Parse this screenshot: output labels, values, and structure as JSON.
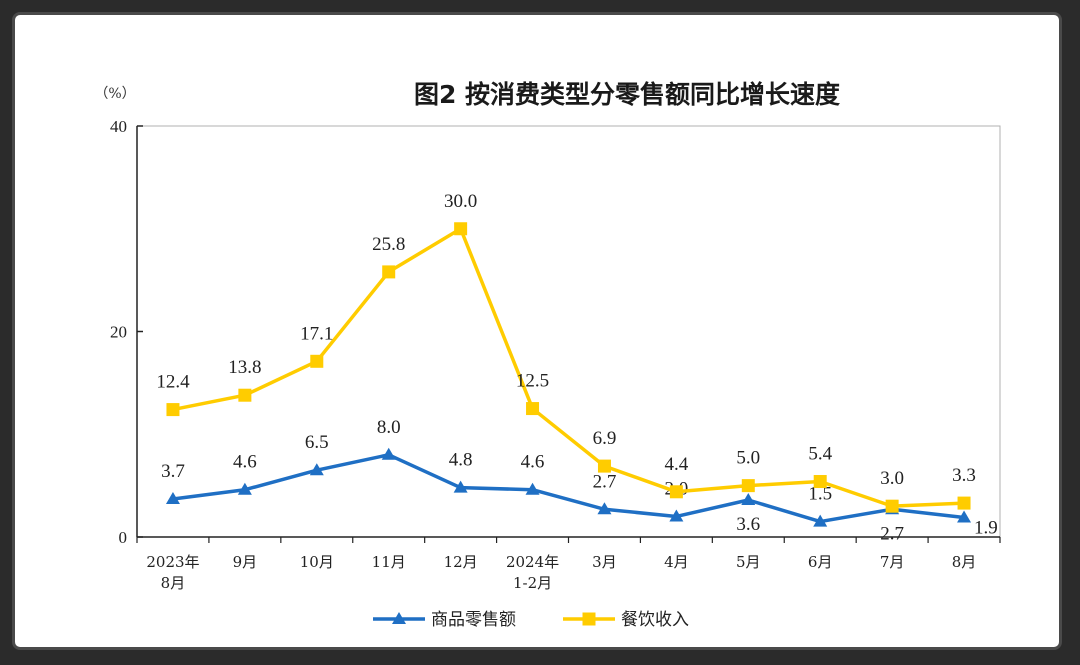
{
  "chart_data": {
    "type": "line",
    "title": "图2  按消费类型分零售额同比增长速度",
    "unit_label": "（%）",
    "ylim": [
      0,
      40
    ],
    "yticks": [
      0,
      20,
      40
    ],
    "categories": [
      [
        "2023年",
        "8月"
      ],
      [
        "9月"
      ],
      [
        "10月"
      ],
      [
        "11月"
      ],
      [
        "12月"
      ],
      [
        "2024年",
        "1-2月"
      ],
      [
        "3月"
      ],
      [
        "4月"
      ],
      [
        "5月"
      ],
      [
        "6月"
      ],
      [
        "7月"
      ],
      [
        "8月"
      ]
    ],
    "series": [
      {
        "name": "商品零售额",
        "color": "#1f6fc4",
        "marker": "triangle",
        "values": [
          3.7,
          4.6,
          6.5,
          8.0,
          4.8,
          4.6,
          2.7,
          2.0,
          3.6,
          1.5,
          2.7,
          1.9
        ],
        "labels": [
          "3.7",
          "4.6",
          "6.5",
          "8.0",
          "4.8",
          "4.6",
          "2.7",
          "2.0",
          "3.6",
          "1.5",
          "2.7",
          "1.9"
        ],
        "label_pos": [
          "above",
          "above",
          "above",
          "above",
          "above",
          "above",
          "above",
          "above",
          "below",
          "above",
          "below",
          "right"
        ]
      },
      {
        "name": "餐饮收入",
        "color": "#ffcc00",
        "marker": "square",
        "values": [
          12.4,
          13.8,
          17.1,
          25.8,
          30.0,
          12.5,
          6.9,
          4.4,
          5.0,
          5.4,
          3.0,
          3.3
        ],
        "labels": [
          "12.4",
          "13.8",
          "17.1",
          "25.8",
          "30.0",
          "12.5",
          "6.9",
          "4.4",
          "5.0",
          "5.4",
          "3.0",
          "3.3"
        ],
        "label_pos": [
          "above",
          "above",
          "above",
          "above",
          "above",
          "above",
          "above",
          "above",
          "above",
          "above",
          "above",
          "above"
        ]
      }
    ],
    "grid": false,
    "legend_position": "bottom-center"
  }
}
